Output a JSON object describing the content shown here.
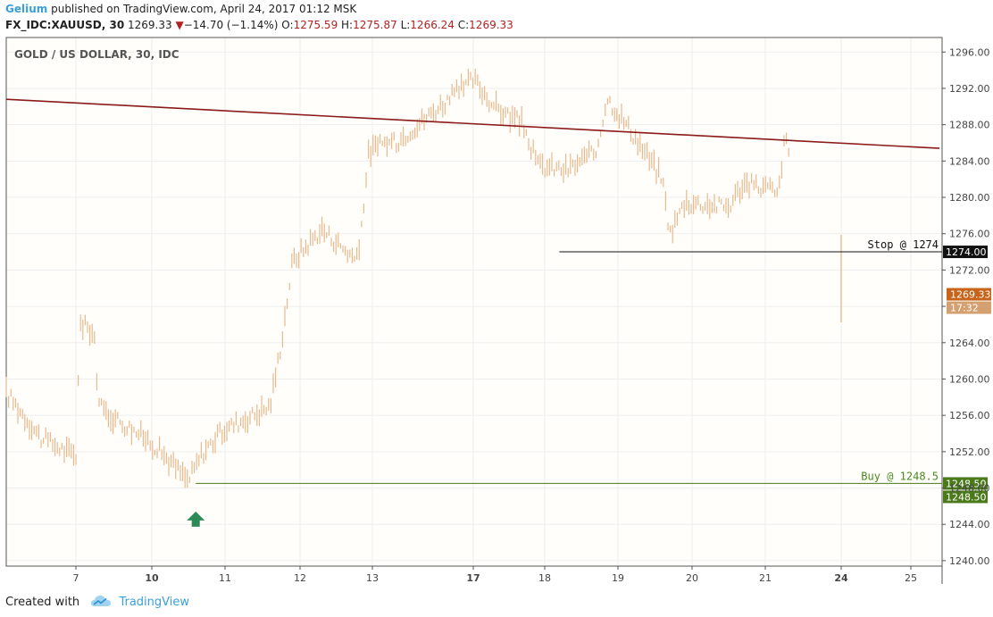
{
  "header": {
    "publisher": "Gelium",
    "published_text": "published on TradingView.com, April 24, 2017 01:12 MSK",
    "symbol": "FX_IDC:XAUUSD, 30",
    "last": "1269.33",
    "change_arrow": "▼",
    "change": "−14.70 (−1.14%)",
    "open_label": "O:",
    "open": "1275.59",
    "high_label": "H:",
    "high": "1275.87",
    "low_label": "L:",
    "low": "1266.24",
    "close_label": "C:",
    "close": "1269.33"
  },
  "footer": {
    "created_with": "Created with",
    "brand": "TradingView",
    "logo_icon": "tradingview-cloud-icon"
  },
  "chart_data": {
    "type": "candlestick",
    "title": "GOLD / US DOLLAR, 30, IDC",
    "xlabel": "",
    "ylabel": "",
    "x_ticks": [
      "7",
      "10",
      "11",
      "12",
      "13",
      "17",
      "18",
      "19",
      "20",
      "21",
      "24",
      "25"
    ],
    "x_ticks_bold": [
      "10",
      "17",
      "24"
    ],
    "y_ticks": [
      "1240.00",
      "1244.00",
      "1248.00",
      "1252.00",
      "1256.00",
      "1260.00",
      "1264.00",
      "1268.00",
      "1272.00",
      "1276.00",
      "1280.00",
      "1284.00",
      "1288.00",
      "1292.00",
      "1296.00"
    ],
    "ylim": [
      1239.4,
      1297.6
    ],
    "grid": true,
    "bar_color": "#e8b98d",
    "price_path": [
      {
        "day": "6",
        "price": 1258.5
      },
      {
        "day": "6.5",
        "price": 1253.5
      },
      {
        "day": "7",
        "price": 1251.5
      },
      {
        "day": "7.15",
        "price": 1266.0
      },
      {
        "day": "7.6",
        "price": 1265.5
      },
      {
        "day": "7.8",
        "price": 1264.0
      },
      {
        "day": "7.85",
        "price": 1257.0
      },
      {
        "day": "10",
        "price": 1253.0
      },
      {
        "day": "10.5",
        "price": 1248.8
      },
      {
        "day": "10.7",
        "price": 1252.0
      },
      {
        "day": "11",
        "price": 1254.5
      },
      {
        "day": "11.6",
        "price": 1257.0
      },
      {
        "day": "11.75",
        "price": 1264.0
      },
      {
        "day": "11.9",
        "price": 1273.0
      },
      {
        "day": "12.3",
        "price": 1276.5
      },
      {
        "day": "12.8",
        "price": 1273.0
      },
      {
        "day": "12.95",
        "price": 1285.0
      },
      {
        "day": "13.5",
        "price": 1286.0
      },
      {
        "day": "13.9",
        "price": 1286.0
      },
      {
        "day": "17",
        "price": 1293.0
      },
      {
        "day": "17.3",
        "price": 1290.0
      },
      {
        "day": "17.7",
        "price": 1288.0
      },
      {
        "day": "17.9",
        "price": 1283.5
      },
      {
        "day": "18.3",
        "price": 1283.0
      },
      {
        "day": "18.7",
        "price": 1285.0
      },
      {
        "day": "18.85",
        "price": 1291.0
      },
      {
        "day": "19.2",
        "price": 1287.0
      },
      {
        "day": "19.6",
        "price": 1282.0
      },
      {
        "day": "19.7",
        "price": 1276.0
      },
      {
        "day": "19.9",
        "price": 1279.5
      },
      {
        "day": "20.5",
        "price": 1279.0
      },
      {
        "day": "20.7",
        "price": 1281.5
      },
      {
        "day": "21.2",
        "price": 1281.0
      },
      {
        "day": "21.5",
        "price": 1280.0
      },
      {
        "day": "21.7",
        "price": 1285.0
      },
      {
        "day": "21.8",
        "price": 1286.5
      },
      {
        "day": "21.95",
        "price": 1284.5
      }
    ],
    "trendline": {
      "from": {
        "day": "6",
        "price": 1290.8
      },
      "to": {
        "day": "25.4",
        "price": 1285.4
      },
      "color": "#8b1a1a"
    },
    "horizontal_levels": [
      {
        "name": "stop",
        "label": "Stop @ 1274",
        "price": 1274.0,
        "axis_label": "1274.00",
        "color": "#111111",
        "from_day": "18.2"
      },
      {
        "name": "buy",
        "label": "Buy @ 1248.5",
        "price": 1248.5,
        "axis_label": "1248.50",
        "axis_label_2": "1248.50",
        "color": "#4a7a1a",
        "label_color": "#4a8a20",
        "from_day": "10.6"
      }
    ],
    "current_price": {
      "value": "1269.33",
      "countdown": "17:32",
      "price": 1269.33,
      "color": "#c8641a",
      "countdown_color": "#d4a070"
    },
    "last_bar": {
      "day": "24",
      "high": 1275.87,
      "low": 1266.24
    },
    "buy_marker": {
      "day": "10.6",
      "price": 1246.0,
      "icon": "up-arrow-icon",
      "color": "#2e8b57"
    }
  }
}
